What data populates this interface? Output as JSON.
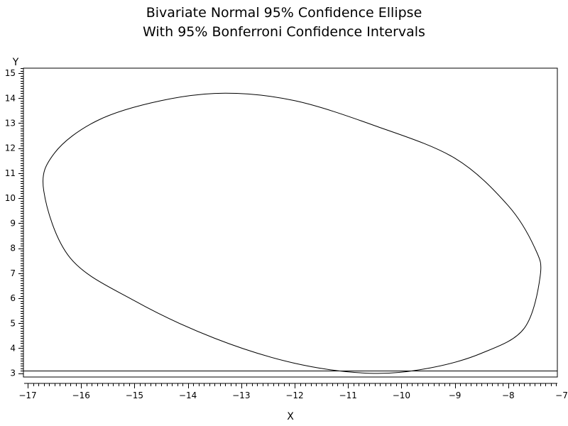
{
  "chart_data": {
    "type": "line",
    "title": "Bivariate Normal 95% Confidence Ellipse",
    "subtitle": "With 95% Bonferroni Confidence Intervals",
    "xlabel": "X",
    "ylabel": "Y",
    "xlim": [
      -17,
      -7
    ],
    "ylim": [
      2.85,
      15.2
    ],
    "x_ticks": [
      "−17",
      "−16",
      "−15",
      "−14",
      "−13",
      "−12",
      "−11",
      "−10",
      "−9",
      "−8",
      "−7"
    ],
    "y_ticks": [
      "3",
      "4",
      "5",
      "6",
      "7",
      "8",
      "9",
      "10",
      "11",
      "12",
      "13",
      "14",
      "15"
    ],
    "grid": false,
    "series": [
      {
        "type": "ellipse",
        "points": [
          {
            "x": -7.4,
            "y": 6.9
          },
          {
            "x": -7.5,
            "y": 8.0
          },
          {
            "x": -8.0,
            "y": 9.7
          },
          {
            "x": -9.0,
            "y": 11.6
          },
          {
            "x": -10.5,
            "y": 12.9
          },
          {
            "x": -12.0,
            "y": 13.9
          },
          {
            "x": -13.3,
            "y": 14.2
          },
          {
            "x": -14.5,
            "y": 13.9
          },
          {
            "x": -15.7,
            "y": 13.1
          },
          {
            "x": -16.5,
            "y": 11.8
          },
          {
            "x": -16.7,
            "y": 10.3
          },
          {
            "x": -16.2,
            "y": 7.6
          },
          {
            "x": -15.0,
            "y": 5.9
          },
          {
            "x": -13.5,
            "y": 4.4
          },
          {
            "x": -12.0,
            "y": 3.4
          },
          {
            "x": -10.6,
            "y": 3.0
          },
          {
            "x": -9.5,
            "y": 3.2
          },
          {
            "x": -8.5,
            "y": 3.8
          },
          {
            "x": -7.7,
            "y": 4.8
          }
        ]
      },
      {
        "type": "hline",
        "y": 3.1,
        "x_range": [
          -17,
          -7
        ]
      }
    ]
  }
}
